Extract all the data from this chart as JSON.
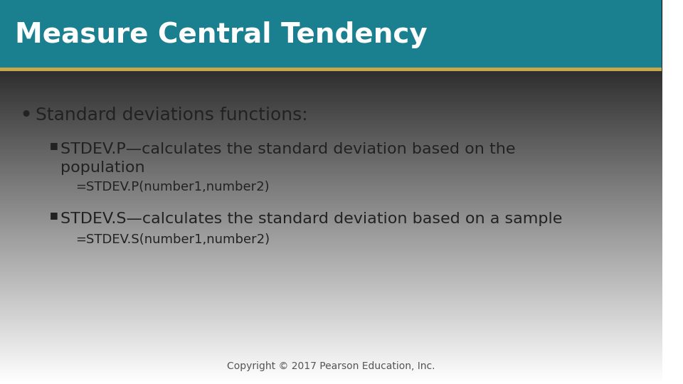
{
  "title": "Measure Central Tendency",
  "title_color": "#ffffff",
  "title_bg_color": "#1a7f8e",
  "title_stripe_color": "#c8a84b",
  "bullet1": "Standard deviations functions:",
  "sub_bullet_marker": "■",
  "sub_bullet1_text": "STDEV.P—calculates the standard deviation based on the",
  "sub_bullet1_cont": "population",
  "sub_formula1": "=STDEV.P(number1,number2)",
  "sub_bullet2_text": "STDEV.S—calculates the standard deviation based on a sample",
  "sub_formula2": "=STDEV.S(number1,number2)",
  "copyright": "Copyright © 2017 Pearson Education, Inc.",
  "title_fontsize": 28,
  "bullet_fontsize": 18,
  "sub_bullet_fontsize": 16,
  "formula_fontsize": 13,
  "copyright_fontsize": 10
}
